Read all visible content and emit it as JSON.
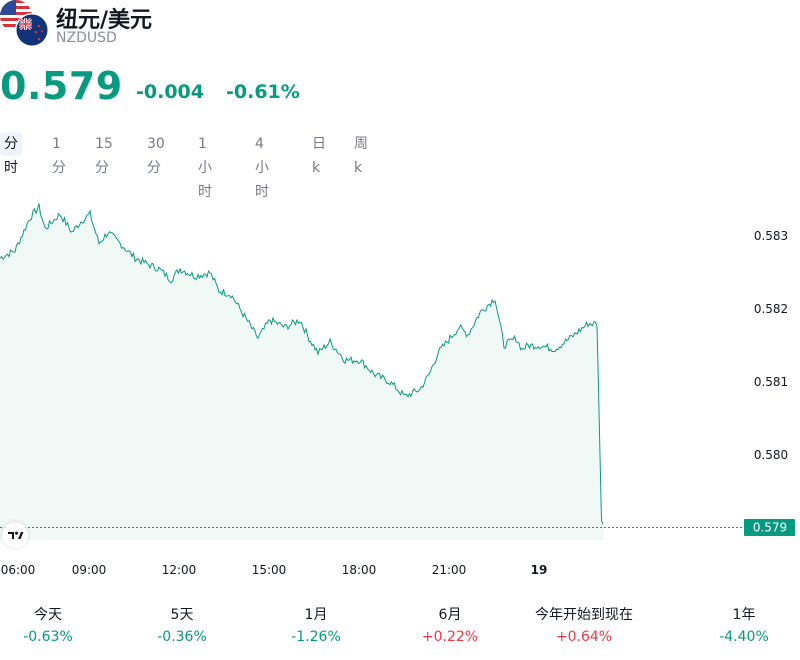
{
  "header": {
    "title": "纽元/美元",
    "symbol": "NZDUSD",
    "flags": [
      "us-flag-icon",
      "nz-flag-icon"
    ]
  },
  "quote": {
    "price": "0.579",
    "change": "-0.004",
    "change_pct": "-0.61%",
    "color": "#089981"
  },
  "tabs": [
    {
      "label": "分时",
      "active": true
    },
    {
      "label": "1分",
      "active": false
    },
    {
      "label": "15分",
      "active": false
    },
    {
      "label": "30分",
      "active": false
    },
    {
      "label": "1小时",
      "active": false
    },
    {
      "label": "4小时",
      "active": false
    },
    {
      "label": "日k",
      "active": false
    },
    {
      "label": "周k",
      "active": false
    }
  ],
  "chart_data": {
    "type": "area",
    "x_ticks": [
      "06:00",
      "09:00",
      "12:00",
      "15:00",
      "18:00",
      "21:00",
      "19"
    ],
    "y_ticks": [
      "0.583",
      "0.582",
      "0.581",
      "0.580",
      "0.579"
    ],
    "ylim": [
      0.5788,
      0.584
    ],
    "current_label": "0.579",
    "current_value": 0.579,
    "line_color": "#089981",
    "fill_color": "#e6f4f1",
    "x_hours": [
      6.0,
      6.5,
      7.0,
      7.3,
      7.5,
      8.0,
      8.4,
      8.7,
      9.0,
      9.3,
      9.6,
      10.0,
      10.5,
      11.0,
      11.3,
      11.7,
      12.0,
      12.5,
      13.0,
      13.3,
      13.7,
      14.0,
      14.3,
      14.6,
      15.0,
      15.5,
      16.0,
      16.3,
      16.6,
      17.0,
      17.5,
      18.0,
      18.5,
      19.0,
      19.5,
      20.0,
      20.3,
      20.6,
      21.0,
      21.3,
      21.6,
      22.0,
      22.5,
      22.8,
      23.2,
      23.4,
      23.6,
      24.0,
      24.5,
      25.0,
      25.3,
      25.6,
      25.9,
      26.0,
      26.05,
      26.1
    ],
    "values": [
      0.5827,
      0.5828,
      0.58325,
      0.5834,
      0.5831,
      0.5833,
      0.58305,
      0.5832,
      0.5833,
      0.5829,
      0.58305,
      0.5829,
      0.5827,
      0.5826,
      0.58255,
      0.5824,
      0.58255,
      0.58245,
      0.5825,
      0.58225,
      0.5822,
      0.582,
      0.5818,
      0.5816,
      0.58185,
      0.58175,
      0.58185,
      0.5816,
      0.5814,
      0.58155,
      0.5813,
      0.5813,
      0.5811,
      0.581,
      0.5808,
      0.5809,
      0.5811,
      0.5814,
      0.5816,
      0.58175,
      0.58165,
      0.58195,
      0.58215,
      0.5815,
      0.5816,
      0.58145,
      0.5815,
      0.5815,
      0.58145,
      0.5816,
      0.5817,
      0.5818,
      0.5818,
      0.58,
      0.5791,
      0.57905
    ]
  },
  "performance": [
    {
      "label": "今天",
      "value": "-0.63%",
      "color": "#089981"
    },
    {
      "label": "5天",
      "value": "-0.36%",
      "color": "#089981"
    },
    {
      "label": "1月",
      "value": "-1.26%",
      "color": "#089981"
    },
    {
      "label": "6月",
      "value": "+0.22%",
      "color": "#f23645"
    },
    {
      "label": "今年开始到现在",
      "value": "+0.64%",
      "color": "#f23645"
    },
    {
      "label": "1年",
      "value": "-4.40%",
      "color": "#089981"
    }
  ]
}
